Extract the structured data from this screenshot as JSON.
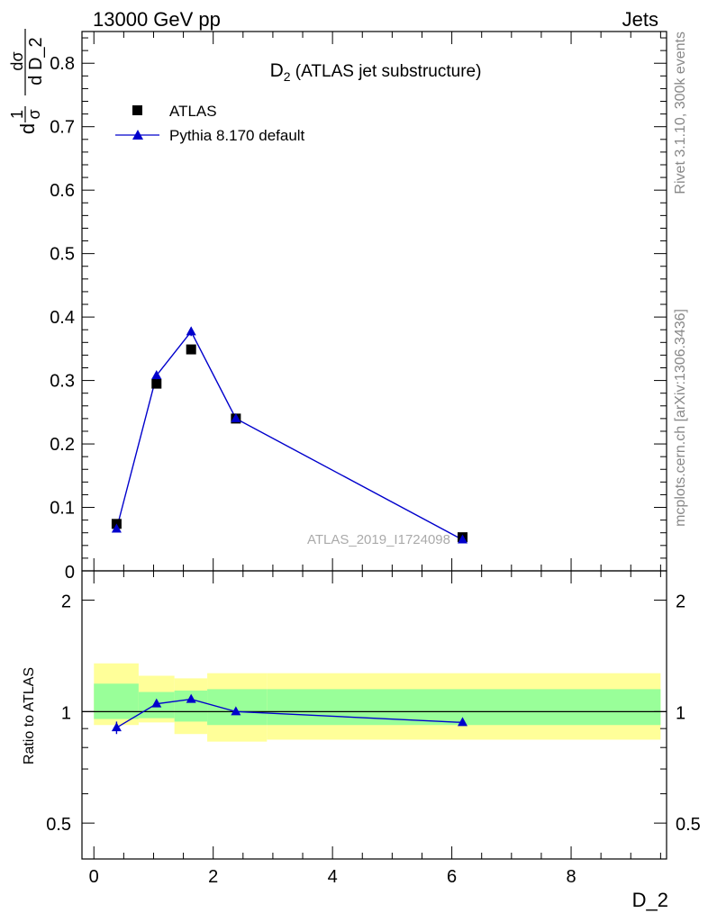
{
  "header": {
    "left": "13000 GeV pp",
    "right": "Jets"
  },
  "side": {
    "rivet": "Rivet 3.1.10,  300k events",
    "mcplots": "mcplots.cern.ch [arXiv:1306.3436]"
  },
  "colors": {
    "mc": "#0000cc",
    "data": "#000000",
    "band_inner": "#99ff99",
    "band_outer": "#ffff99"
  },
  "chart_data": [
    {
      "type": "scatter",
      "panel": "main",
      "title_main": "D",
      "title_sub": "2",
      "title_rest": " (ATLAS jet substructure)",
      "ylabel": "1/σ dσ/d D_2",
      "ylabel_parts": {
        "num1": "1",
        "den1": "σ",
        "num2": "dσ",
        "den2": "d D_2",
        "prefix": "d"
      },
      "watermark": "ATLAS_2019_I1724098",
      "xlim": [
        -0.2,
        9.6
      ],
      "ylim": [
        0,
        0.85
      ],
      "yticks": [
        0.1,
        0.2,
        0.3,
        0.4,
        0.5,
        0.6,
        0.7,
        0.8
      ],
      "ytick_labels": [
        "0.1",
        "0.2",
        "0.3",
        "0.4",
        "0.5",
        "0.6",
        "0.7",
        "0.8"
      ],
      "zero_label": "0",
      "legend_position": "top-left",
      "series": [
        {
          "name": "ATLAS",
          "style": "data",
          "x": [
            0.38,
            1.05,
            1.63,
            2.38,
            6.18
          ],
          "y": [
            0.074,
            0.295,
            0.349,
            0.24,
            0.053
          ],
          "yerr": [
            0.003,
            0.005,
            0.005,
            0.004,
            0.003
          ]
        },
        {
          "name": "Pythia 8.170 default",
          "style": "mc",
          "x": [
            0.38,
            1.05,
            1.63,
            2.38,
            6.18
          ],
          "y": [
            0.066,
            0.308,
            0.377,
            0.24,
            0.049
          ],
          "yerr": [
            0.004,
            0.006,
            0.007,
            0.003,
            0.002
          ]
        }
      ]
    },
    {
      "type": "scatter",
      "panel": "ratio",
      "ylabel": "Ratio to ATLAS",
      "xlabel": "D_2",
      "xlim": [
        -0.2,
        9.6
      ],
      "ylim": [
        0.4,
        2.4
      ],
      "yscale": "log",
      "yticks": [
        0.5,
        1,
        2
      ],
      "ytick_labels": [
        "0.5",
        "1",
        "2"
      ],
      "xticks": [
        0,
        2,
        4,
        6,
        8
      ],
      "xtick_labels": [
        "0",
        "2",
        "4",
        "6",
        "8"
      ],
      "bins": [
        {
          "lo": 0.0,
          "hi": 0.75,
          "inner": [
            0.955,
            1.19
          ],
          "outer": [
            0.92,
            1.35
          ]
        },
        {
          "lo": 0.75,
          "hi": 1.35,
          "inner": [
            0.96,
            1.13
          ],
          "outer": [
            0.935,
            1.25
          ]
        },
        {
          "lo": 1.35,
          "hi": 1.9,
          "inner": [
            0.94,
            1.14
          ],
          "outer": [
            0.87,
            1.23
          ]
        },
        {
          "lo": 1.9,
          "hi": 2.9,
          "inner": [
            0.92,
            1.15
          ],
          "outer": [
            0.83,
            1.27
          ]
        },
        {
          "lo": 2.9,
          "hi": 9.5,
          "inner": [
            0.92,
            1.15
          ],
          "outer": [
            0.84,
            1.27
          ]
        }
      ],
      "series": [
        {
          "name": "Pythia 8.170 default",
          "x": [
            0.38,
            1.05,
            1.63,
            2.38,
            6.18
          ],
          "y": [
            0.905,
            1.05,
            1.08,
            1.0,
            0.935
          ],
          "yerr": [
            0.035,
            0.015,
            0.015,
            0.01,
            0.01
          ]
        }
      ]
    }
  ]
}
